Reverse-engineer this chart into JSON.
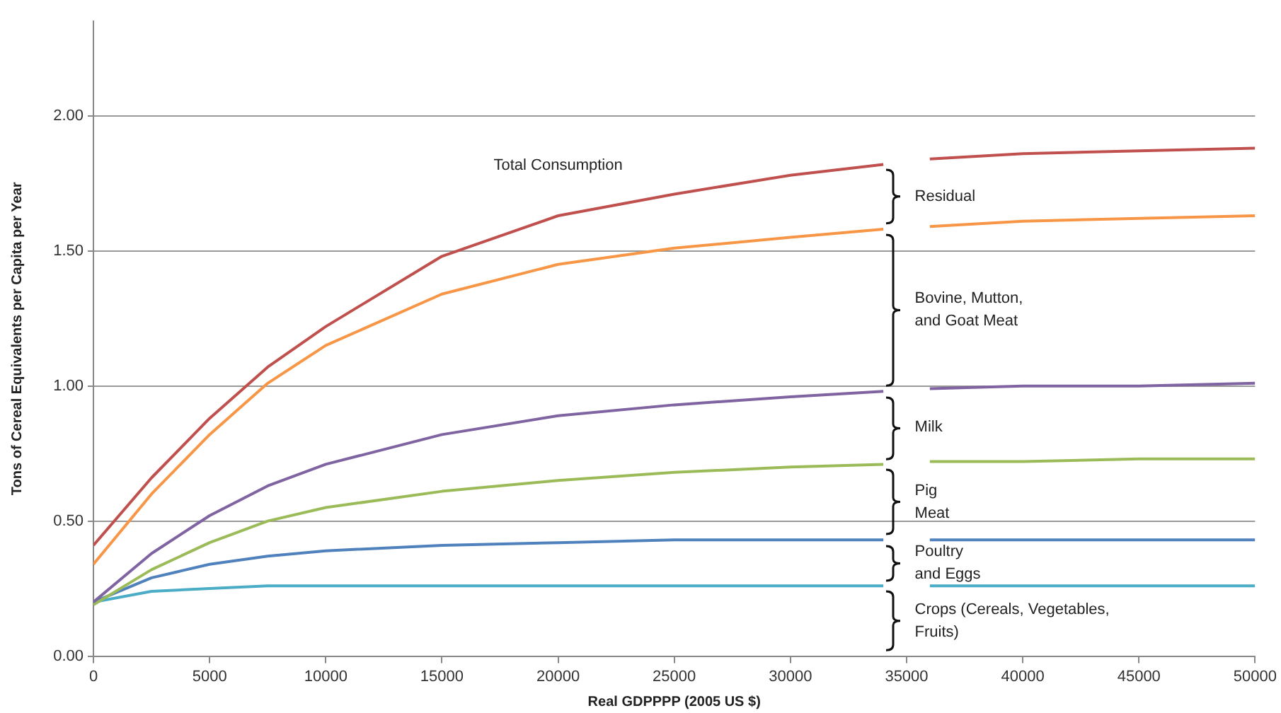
{
  "chart_data": {
    "type": "line",
    "xlabel": "Real GDPPPP (2005 US $)",
    "ylabel": "Tons of Cereal Equivalents per Capita per Year",
    "x": [
      0,
      2500,
      5000,
      7500,
      10000,
      15000,
      20000,
      25000,
      30000,
      34000,
      35000,
      36000,
      40000,
      45000,
      50000
    ],
    "series": [
      {
        "color": "#c0504d",
        "values": [
          0.41,
          0.66,
          0.88,
          1.07,
          1.22,
          1.48,
          1.63,
          1.71,
          1.78,
          1.82,
          null,
          1.84,
          1.86,
          1.87,
          1.88
        ]
      },
      {
        "color": "#f79646",
        "values": [
          0.34,
          0.6,
          0.82,
          1.01,
          1.15,
          1.34,
          1.45,
          1.51,
          1.55,
          1.58,
          null,
          1.59,
          1.61,
          1.62,
          1.63
        ]
      },
      {
        "color": "#8064a2",
        "values": [
          0.2,
          0.38,
          0.52,
          0.63,
          0.71,
          0.82,
          0.89,
          0.93,
          0.96,
          0.98,
          null,
          0.99,
          1.0,
          1.0,
          1.01
        ]
      },
      {
        "color": "#9bbb59",
        "values": [
          0.19,
          0.32,
          0.42,
          0.5,
          0.55,
          0.61,
          0.65,
          0.68,
          0.7,
          0.71,
          null,
          0.72,
          0.72,
          0.73,
          0.73
        ]
      },
      {
        "color": "#4f81bd",
        "values": [
          0.2,
          0.29,
          0.34,
          0.37,
          0.39,
          0.41,
          0.42,
          0.43,
          0.43,
          0.43,
          null,
          0.43,
          0.43,
          0.43,
          0.43
        ]
      },
      {
        "color": "#4bacc6",
        "values": [
          0.2,
          0.24,
          0.25,
          0.26,
          0.26,
          0.26,
          0.26,
          0.26,
          0.26,
          0.26,
          null,
          0.26,
          0.26,
          0.26,
          0.26
        ]
      }
    ],
    "xlim": [
      0,
      50000
    ],
    "xticks": [
      0,
      5000,
      10000,
      15000,
      20000,
      25000,
      30000,
      35000,
      40000,
      45000,
      50000
    ],
    "ylim": [
      0,
      2.35
    ],
    "yticks": [
      {
        "value": 0,
        "label": "0.00"
      },
      {
        "value": 0.5,
        "label": "0.50"
      },
      {
        "value": 1,
        "label": "1.00"
      },
      {
        "value": 1.5,
        "label": "1.50"
      },
      {
        "value": 2,
        "label": "2.00"
      }
    ],
    "grid": "y",
    "legend": false,
    "marker": "none",
    "line_style": "solid",
    "annotations": [
      "Total Consumption",
      "Residual",
      "Bovine, Mutton,\nand Goat Meat",
      "Milk",
      "Pig\nMeat",
      "Poultry\nand Eggs",
      "Crops (Cereals, Vegetables,\nFruits)"
    ]
  }
}
